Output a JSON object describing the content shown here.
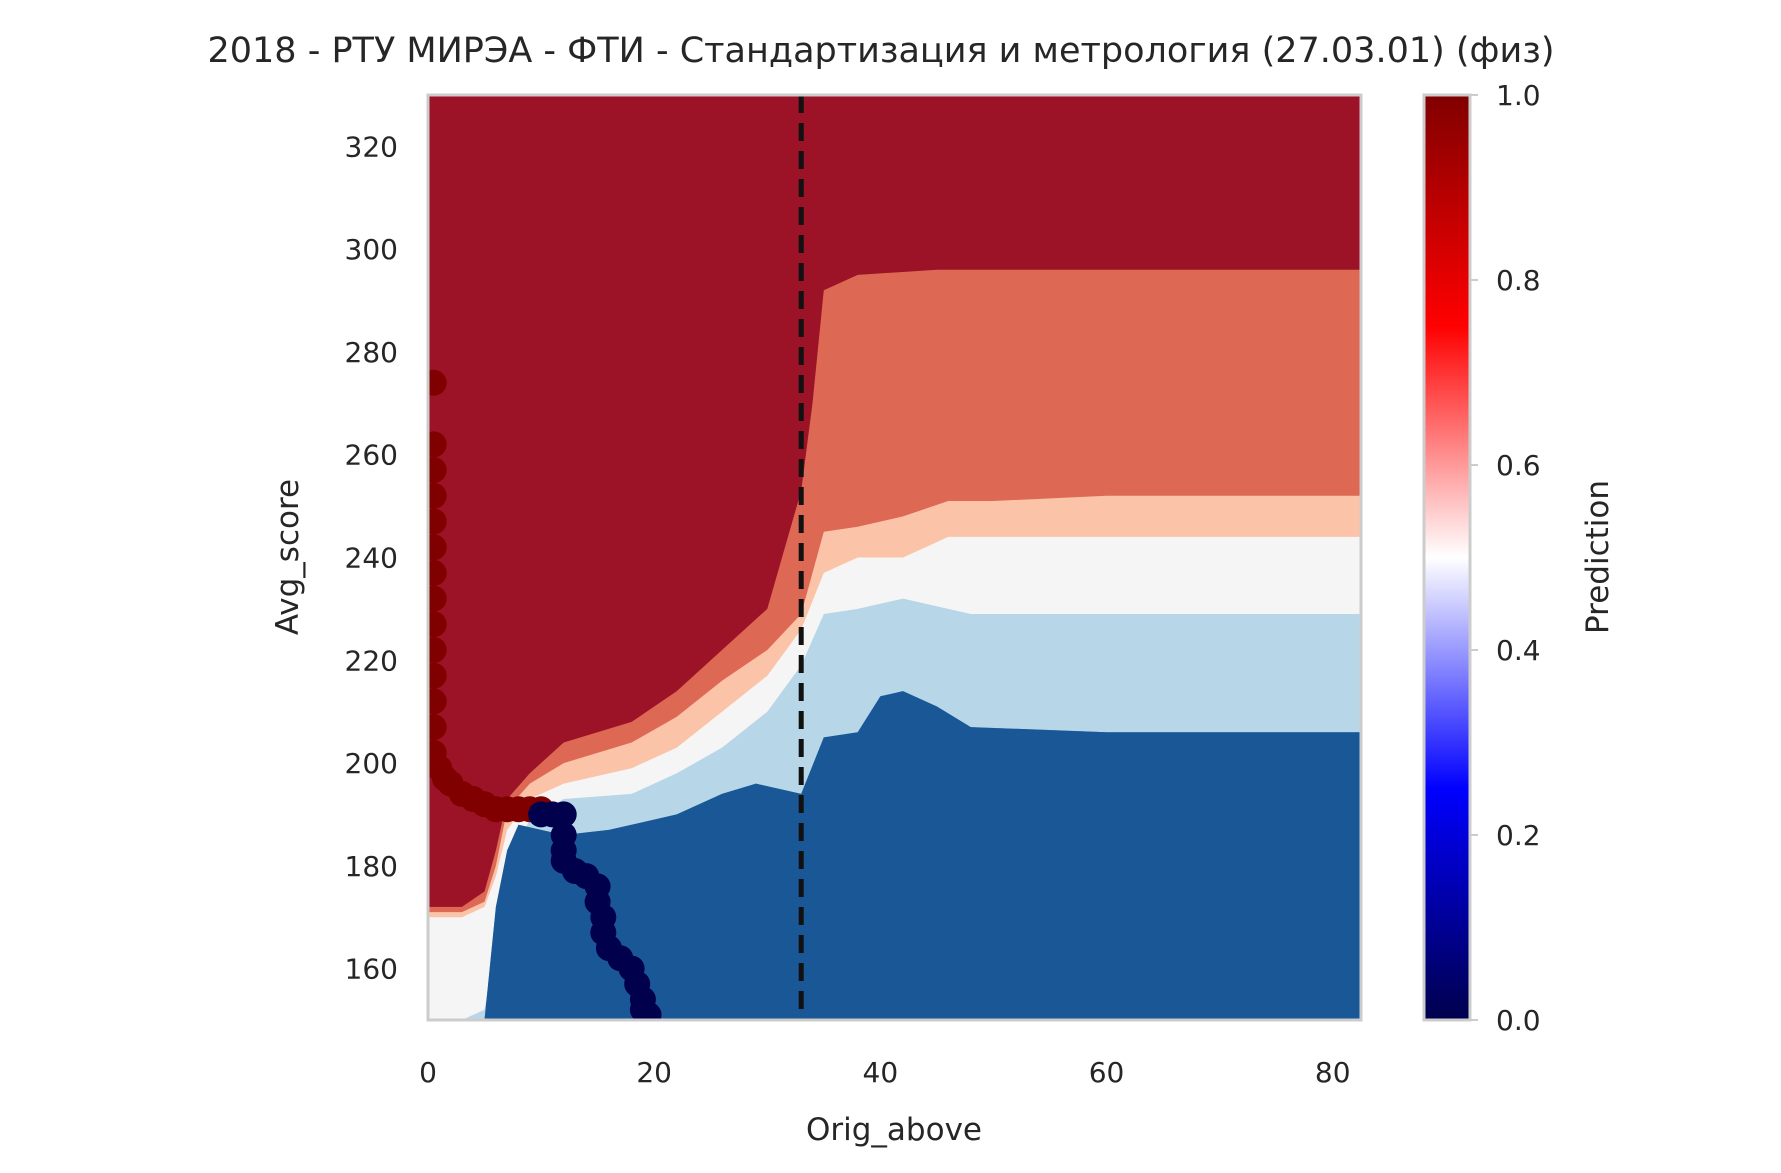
{
  "chart_data": {
    "type": "heatmap",
    "title": "2018 - РТУ МИРЭА - ФТИ - Стандартизация и метрология (27.03.01) (физ)",
    "xlabel": "Orig_above",
    "ylabel": "Avg_score",
    "xlim": [
      0,
      82.5
    ],
    "ylim": [
      150,
      330
    ],
    "xticks": [
      0,
      20,
      40,
      60,
      80
    ],
    "yticks": [
      160,
      180,
      200,
      220,
      240,
      260,
      280,
      300,
      320
    ],
    "grid": false,
    "colorbar": {
      "label": "Prediction",
      "range": [
        0,
        1
      ],
      "ticks": [
        0.0,
        0.2,
        0.4,
        0.6,
        0.8,
        1.0
      ],
      "tick_labels": [
        "0.0",
        "0.2",
        "0.4",
        "0.6",
        "0.8",
        "1.0"
      ],
      "colormap": "seismic"
    },
    "contour_levels": [
      {
        "level": 0.1,
        "color": "#1a5796"
      },
      {
        "level": 0.3,
        "color": "#4c99c8"
      },
      {
        "level": 0.45,
        "color": "#b7d6e8"
      },
      {
        "level": 0.55,
        "color": "#f5f5f5"
      },
      {
        "level": 0.7,
        "color": "#fbc3a8"
      },
      {
        "level": 0.85,
        "color": "#dd6954"
      },
      {
        "level": 1.0,
        "color": "#9c1227"
      }
    ],
    "level_boundaries": [
      {
        "name": "b1",
        "points": [
          [
            0,
            150
          ],
          [
            5,
            150
          ],
          [
            6,
            172
          ],
          [
            7,
            183
          ],
          [
            8,
            188
          ],
          [
            12,
            186
          ],
          [
            16,
            187
          ],
          [
            22,
            190
          ],
          [
            26,
            194
          ],
          [
            29,
            196
          ],
          [
            33,
            194
          ],
          [
            35,
            205
          ],
          [
            38,
            206
          ],
          [
            40,
            213
          ],
          [
            42,
            214
          ],
          [
            45,
            211
          ],
          [
            48,
            207
          ],
          [
            60,
            206
          ],
          [
            82.5,
            206
          ]
        ]
      },
      {
        "name": "b2",
        "points": [
          [
            0,
            150
          ],
          [
            3,
            150
          ],
          [
            5,
            152
          ],
          [
            6,
            165
          ],
          [
            7,
            180
          ],
          [
            9,
            189
          ],
          [
            12,
            193
          ],
          [
            18,
            194
          ],
          [
            22,
            198
          ],
          [
            26,
            203
          ],
          [
            30,
            210
          ],
          [
            33,
            219
          ],
          [
            35,
            229
          ],
          [
            38,
            230
          ],
          [
            42,
            232
          ],
          [
            48,
            229
          ],
          [
            60,
            229
          ],
          [
            82.5,
            229
          ]
        ]
      },
      {
        "name": "b3",
        "points": [
          [
            0,
            170
          ],
          [
            3,
            170
          ],
          [
            5,
            172
          ],
          [
            6,
            178
          ],
          [
            7,
            187
          ],
          [
            9,
            193
          ],
          [
            12,
            196
          ],
          [
            18,
            199
          ],
          [
            22,
            203
          ],
          [
            26,
            210
          ],
          [
            30,
            217
          ],
          [
            33,
            226
          ],
          [
            35,
            237
          ],
          [
            38,
            240
          ],
          [
            42,
            240
          ],
          [
            46,
            244
          ],
          [
            60,
            244
          ],
          [
            82.5,
            244
          ]
        ]
      },
      {
        "name": "b4",
        "points": [
          [
            0,
            171
          ],
          [
            3,
            171
          ],
          [
            5,
            173
          ],
          [
            6,
            180
          ],
          [
            7,
            191
          ],
          [
            9,
            196
          ],
          [
            12,
            200
          ],
          [
            18,
            204
          ],
          [
            22,
            209
          ],
          [
            26,
            216
          ],
          [
            30,
            222
          ],
          [
            33,
            229
          ],
          [
            35,
            245
          ],
          [
            38,
            246
          ],
          [
            42,
            248
          ],
          [
            46,
            251
          ],
          [
            50,
            251
          ],
          [
            60,
            252
          ],
          [
            82.5,
            252
          ]
        ]
      },
      {
        "name": "b5",
        "points": [
          [
            0,
            172
          ],
          [
            3,
            172
          ],
          [
            5,
            175
          ],
          [
            6,
            183
          ],
          [
            7,
            193
          ],
          [
            9,
            198
          ],
          [
            12,
            204
          ],
          [
            18,
            208
          ],
          [
            22,
            214
          ],
          [
            26,
            222
          ],
          [
            30,
            230
          ],
          [
            33,
            253
          ],
          [
            34,
            270
          ],
          [
            35,
            292
          ],
          [
            38,
            295
          ],
          [
            45,
            296
          ],
          [
            60,
            296
          ],
          [
            82.5,
            296
          ]
        ]
      },
      {
        "name": "b6",
        "points": [
          [
            0,
            174
          ],
          [
            3,
            174
          ],
          [
            5,
            176
          ],
          [
            6,
            186
          ],
          [
            7,
            196
          ],
          [
            9,
            202
          ],
          [
            12,
            207
          ],
          [
            18,
            212
          ],
          [
            22,
            220
          ],
          [
            26,
            226
          ],
          [
            30,
            234
          ],
          [
            33,
            271
          ],
          [
            34,
            287
          ],
          [
            35,
            299
          ],
          [
            38,
            302
          ],
          [
            42,
            303
          ],
          [
            45,
            302
          ],
          [
            60,
            300
          ],
          [
            82.5,
            300
          ]
        ]
      }
    ],
    "series": [
      {
        "name": "",
        "color": "#800000",
        "value": 1,
        "points": [
          [
            0.5,
            274
          ],
          [
            0.5,
            262
          ],
          [
            0.5,
            257
          ],
          [
            0.5,
            252
          ],
          [
            0.5,
            247
          ],
          [
            0.5,
            242
          ],
          [
            0.5,
            237
          ],
          [
            0.5,
            232
          ],
          [
            0.5,
            227
          ],
          [
            0.5,
            222
          ],
          [
            0.5,
            217
          ],
          [
            0.5,
            212
          ],
          [
            0.5,
            207
          ],
          [
            0.5,
            202
          ],
          [
            1,
            199
          ],
          [
            1.5,
            197
          ],
          [
            2,
            196
          ],
          [
            3,
            194
          ],
          [
            4,
            193
          ],
          [
            5,
            192
          ],
          [
            6,
            191
          ],
          [
            7,
            191
          ],
          [
            8,
            191
          ],
          [
            9,
            191
          ],
          [
            10,
            191
          ]
        ]
      },
      {
        "name": "",
        "color": "#00004c",
        "value": 0,
        "points": [
          [
            10,
            190
          ],
          [
            11,
            190
          ],
          [
            12,
            190
          ],
          [
            12,
            186
          ],
          [
            12,
            183
          ],
          [
            12,
            181
          ],
          [
            13,
            179
          ],
          [
            14,
            178
          ],
          [
            15,
            176
          ],
          [
            15,
            173
          ],
          [
            15.5,
            170
          ],
          [
            15.5,
            167
          ],
          [
            16,
            164
          ],
          [
            17,
            162
          ],
          [
            18,
            160
          ],
          [
            18.5,
            157
          ],
          [
            19,
            154
          ],
          [
            19,
            152
          ],
          [
            19.5,
            151
          ]
        ]
      }
    ],
    "annotations": [
      {
        "type": "vline",
        "x": 33,
        "style": "dashed",
        "color": "#111111"
      }
    ]
  }
}
